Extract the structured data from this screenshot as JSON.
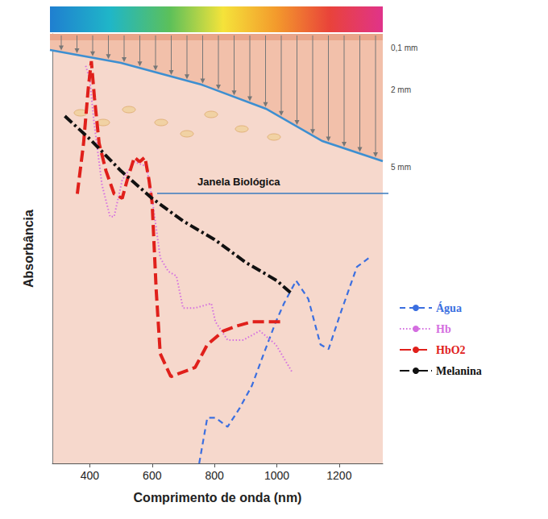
{
  "chart_data": {
    "type": "line",
    "x_label": "Comprimento de onda (nm)",
    "y_label": "Absorbância",
    "xlim": [
      280,
      1340
    ],
    "xticks": [
      400,
      600,
      800,
      1000,
      1200
    ],
    "ylim": [
      0,
      94
    ],
    "tick_labels": "x",
    "grid": false,
    "legend": "right",
    "annotations": {
      "window": "Janela Biológica",
      "depths": [
        "0,1 mm",
        "2 mm",
        "5 mm"
      ]
    },
    "series": [
      {
        "name": "Água",
        "color": "#3b6fe0",
        "line_style": "dashed",
        "x": [
          751,
          764,
          777,
          803,
          842,
          880,
          920,
          958,
          997,
          1023,
          1062,
          1101,
          1140,
          1166,
          1205,
          1257,
          1296
        ],
        "values": [
          0,
          5,
          10,
          10,
          8,
          12,
          17,
          24,
          31,
          35,
          40,
          36,
          26,
          25,
          33,
          43,
          45
        ]
      },
      {
        "name": "Hb",
        "color": "#d46ee0",
        "line_style": "dotted",
        "x": [
          387,
          400,
          413,
          439,
          465,
          478,
          504,
          543,
          582,
          600,
          626,
          652,
          678,
          699,
          738,
          790,
          803,
          842,
          893,
          945,
          997,
          1049
        ],
        "values": [
          87,
          84,
          75,
          61,
          54,
          54,
          62,
          66,
          65,
          58,
          45,
          42,
          41,
          34,
          34,
          35,
          31,
          27,
          27,
          29,
          26,
          20
        ]
      },
      {
        "name": "HbO2",
        "color": "#e0201b",
        "line_style": "longdash",
        "x": [
          360,
          380,
          395,
          405,
          415,
          430,
          452,
          478,
          504,
          520,
          543,
          560,
          577,
          590,
          600,
          613,
          626,
          660,
          699,
          738,
          777,
          829,
          868,
          920,
          970,
          1023
        ],
        "values": [
          59,
          70,
          82,
          88,
          80,
          70,
          64,
          59,
          58,
          62,
          67,
          66,
          67,
          62,
          57,
          38,
          24,
          19,
          20,
          21,
          26,
          29,
          30,
          31,
          31,
          31
        ]
      },
      {
        "name": "Melanina",
        "color": "#111111",
        "line_style": "dashdot",
        "x": [
          320,
          400,
          500,
          600,
          700,
          800,
          900,
          1000,
          1050
        ],
        "values": [
          76,
          71,
          64,
          58,
          53,
          49,
          44,
          40,
          37
        ]
      }
    ]
  }
}
